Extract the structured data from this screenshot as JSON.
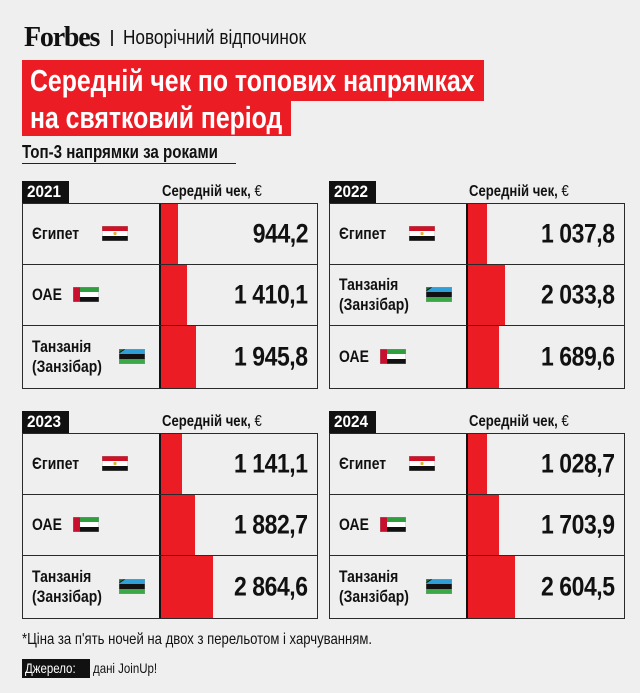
{
  "header": {
    "logo": "Forbes",
    "section": "Новорічний відпочинок"
  },
  "title": {
    "line1": "Середній чек по топових напрямках",
    "line2": "на святковий період"
  },
  "subtitle": "Топ-3 напрямки за роками",
  "column_header": "Середній чек, ",
  "currency": "€",
  "colors": {
    "accent": "#ec1c24",
    "background": "#efefef",
    "text": "#111111"
  },
  "panels": [
    {
      "year": "2021",
      "rows": [
        {
          "name": "Єгипет",
          "flag": "egypt-flag-icon",
          "value": "944,2",
          "num": 944.2
        },
        {
          "name": "ОАЕ",
          "flag": "uae-flag-icon",
          "value": "1 410,1",
          "num": 1410.1
        },
        {
          "name": "Танзанія (Занзібар)",
          "name_l1": "Танзанія",
          "name_l2": "(Занзібар)",
          "flag": "zanzibar-flag-icon",
          "value": "1 945,8",
          "num": 1945.8
        }
      ]
    },
    {
      "year": "2022",
      "rows": [
        {
          "name": "Єгипет",
          "flag": "egypt-flag-icon",
          "value": "1 037,8",
          "num": 1037.8
        },
        {
          "name": "Танзанія (Занзібар)",
          "name_l1": "Танзанія",
          "name_l2": "(Занзібар)",
          "flag": "zanzibar-flag-icon",
          "value": "2 033,8",
          "num": 2033.8
        },
        {
          "name": "ОАЕ",
          "flag": "uae-flag-icon",
          "value": "1 689,6",
          "num": 1689.6
        }
      ]
    },
    {
      "year": "2023",
      "rows": [
        {
          "name": "Єгипет",
          "flag": "egypt-flag-icon",
          "value": "1 141,1",
          "num": 1141.1
        },
        {
          "name": "ОАЕ",
          "flag": "uae-flag-icon",
          "value": "1 882,7",
          "num": 1882.7
        },
        {
          "name": "Танзанія (Занзібар)",
          "name_l1": "Танзанія",
          "name_l2": "(Занзібар)",
          "flag": "zanzibar-flag-icon",
          "value": "2 864,6",
          "num": 2864.6
        }
      ]
    },
    {
      "year": "2024",
      "rows": [
        {
          "name": "Єгипет",
          "flag": "egypt-flag-icon",
          "value": "1 028,7",
          "num": 1028.7
        },
        {
          "name": "ОАЕ",
          "flag": "uae-flag-icon",
          "value": "1 703,9",
          "num": 1703.9
        },
        {
          "name": "Танзанія (Занзібар)",
          "name_l1": "Танзанія",
          "name_l2": "(Занзібар)",
          "flag": "zanzibar-flag-icon",
          "value": "2 604,5",
          "num": 2604.5
        }
      ]
    }
  ],
  "footnote": "*Ціна за п'ять ночей на двох з перельотом і харчуванням.",
  "source": {
    "label": "Джерело:",
    "text": "дані JoinUp!"
  },
  "chart_data": [
    {
      "type": "bar",
      "orientation": "horizontal",
      "title": "2021",
      "categories": [
        "Єгипет",
        "ОАЕ",
        "Танзанія (Занзібар)"
      ],
      "values": [
        944.2,
        1410.1,
        1945.8
      ],
      "xlabel": "Середній чек, €",
      "ylabel": ""
    },
    {
      "type": "bar",
      "orientation": "horizontal",
      "title": "2022",
      "categories": [
        "Єгипет",
        "Танзанія (Занзібар)",
        "ОАЕ"
      ],
      "values": [
        1037.8,
        2033.8,
        1689.6
      ],
      "xlabel": "Середній чек, €",
      "ylabel": ""
    },
    {
      "type": "bar",
      "orientation": "horizontal",
      "title": "2023",
      "categories": [
        "Єгипет",
        "ОАЕ",
        "Танзанія (Занзібар)"
      ],
      "values": [
        1141.1,
        1882.7,
        2864.6
      ],
      "xlabel": "Середній чек, €",
      "ylabel": ""
    },
    {
      "type": "bar",
      "orientation": "horizontal",
      "title": "2024",
      "categories": [
        "Єгипет",
        "ОАЕ",
        "Танзанія (Занзібар)"
      ],
      "values": [
        1028.7,
        1703.9,
        2604.5
      ],
      "xlabel": "Середній чек, €",
      "ylabel": ""
    }
  ]
}
